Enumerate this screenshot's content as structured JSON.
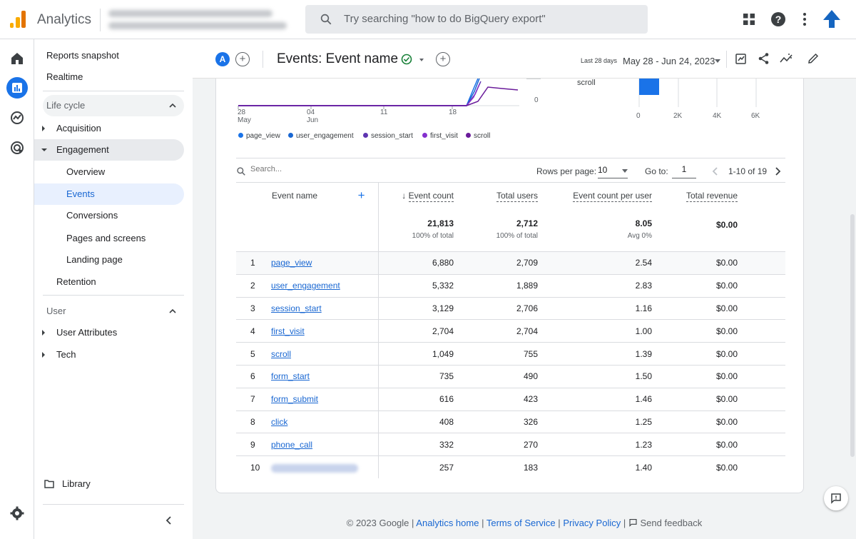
{
  "app": {
    "title": "Analytics",
    "brand_color": "#f9ab00",
    "accent": "#1a73e8"
  },
  "search": {
    "placeholder": "Try searching \"how to do BigQuery export\""
  },
  "nav": {
    "reports_snapshot": "Reports snapshot",
    "realtime": "Realtime",
    "lifecycle": "Life cycle",
    "acquisition": "Acquisition",
    "engagement": "Engagement",
    "overview": "Overview",
    "events": "Events",
    "conversions": "Conversions",
    "pages_and_screens": "Pages and screens",
    "landing_page": "Landing page",
    "retention": "Retention",
    "user": "User",
    "user_attributes": "User Attributes",
    "tech": "Tech",
    "library": "Library"
  },
  "header": {
    "avatar_letter": "A",
    "page_title": "Events: Event name",
    "date_caption": "Last 28 days",
    "date_range": "May 28 - Jun 24, 2023"
  },
  "chart": {
    "x_ticks": [
      {
        "day": "28",
        "month": "May"
      },
      {
        "day": "04",
        "month": "Jun"
      },
      {
        "day": "11",
        "month": ""
      },
      {
        "day": "18",
        "month": ""
      }
    ],
    "y_ticks": [
      "0"
    ],
    "legend": [
      {
        "name": "page_view",
        "color": "#1a73e8"
      },
      {
        "name": "user_engagement",
        "color": "#1967d2"
      },
      {
        "name": "session_start",
        "color": "#5e35b1"
      },
      {
        "name": "first_visit",
        "color": "#8430ce"
      },
      {
        "name": "scroll",
        "color": "#6a1b9a"
      }
    ],
    "bar_label": "scroll",
    "bar_ticks": [
      "0",
      "2K",
      "4K",
      "6K"
    ]
  },
  "table_controls": {
    "search_placeholder": "Search...",
    "rows_per_page_label": "Rows per page:",
    "rows_per_page_value": "10",
    "goto_label": "Go to:",
    "goto_value": "1",
    "range": "1-10 of 19"
  },
  "table": {
    "columns": [
      "Event name",
      "Event count",
      "Total users",
      "Event count per user",
      "Total revenue"
    ],
    "totals": {
      "event_count": "21,813",
      "event_count_sub": "100% of total",
      "total_users": "2,712",
      "total_users_sub": "100% of total",
      "per_user": "8.05",
      "per_user_sub": "Avg 0%",
      "revenue": "$0.00"
    },
    "rows": [
      {
        "idx": "1",
        "name": "page_view",
        "count": "6,880",
        "users": "2,709",
        "per_user": "2.54",
        "revenue": "$0.00"
      },
      {
        "idx": "2",
        "name": "user_engagement",
        "count": "5,332",
        "users": "1,889",
        "per_user": "2.83",
        "revenue": "$0.00"
      },
      {
        "idx": "3",
        "name": "session_start",
        "count": "3,129",
        "users": "2,706",
        "per_user": "1.16",
        "revenue": "$0.00"
      },
      {
        "idx": "4",
        "name": "first_visit",
        "count": "2,704",
        "users": "2,704",
        "per_user": "1.00",
        "revenue": "$0.00"
      },
      {
        "idx": "5",
        "name": "scroll",
        "count": "1,049",
        "users": "755",
        "per_user": "1.39",
        "revenue": "$0.00"
      },
      {
        "idx": "6",
        "name": "form_start",
        "count": "735",
        "users": "490",
        "per_user": "1.50",
        "revenue": "$0.00"
      },
      {
        "idx": "7",
        "name": "form_submit",
        "count": "616",
        "users": "423",
        "per_user": "1.46",
        "revenue": "$0.00"
      },
      {
        "idx": "8",
        "name": "click",
        "count": "408",
        "users": "326",
        "per_user": "1.25",
        "revenue": "$0.00"
      },
      {
        "idx": "9",
        "name": "phone_call",
        "count": "332",
        "users": "270",
        "per_user": "1.23",
        "revenue": "$0.00"
      },
      {
        "idx": "10",
        "name": "",
        "count": "257",
        "users": "183",
        "per_user": "1.40",
        "revenue": "$0.00"
      }
    ]
  },
  "footer": {
    "copyright": "© 2023 Google |",
    "analytics_home": "Analytics home",
    "terms": "Terms of Service",
    "privacy": "Privacy Policy",
    "send_feedback": "Send feedback",
    "sep": "|"
  }
}
